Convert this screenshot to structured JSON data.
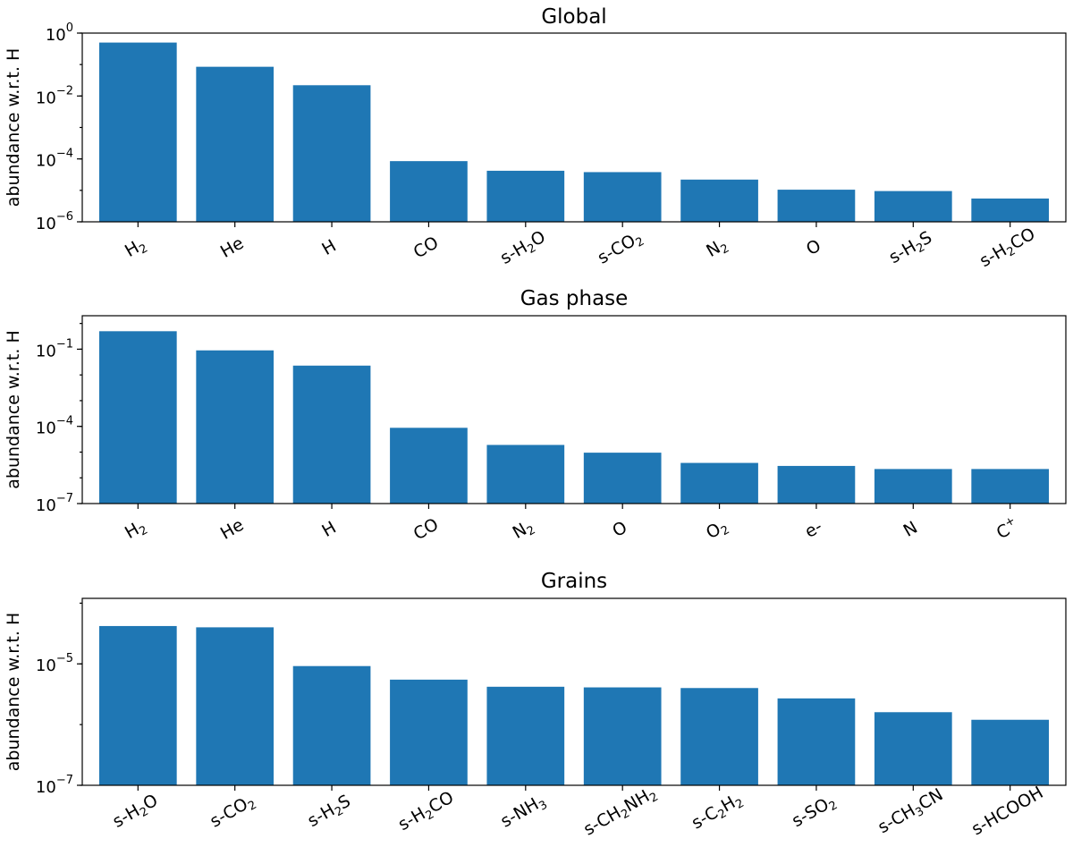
{
  "chart_data": [
    {
      "type": "bar",
      "title": "Global",
      "ylabel": "abundance w.r.t. H",
      "yscale": "log",
      "ylim": [
        1e-06,
        1
      ],
      "yticks": [
        {
          "value": 1,
          "base": "10",
          "exp": "0"
        },
        {
          "value": 0.01,
          "base": "10",
          "exp": "−2"
        },
        {
          "value": 0.0001,
          "base": "10",
          "exp": "−4"
        },
        {
          "value": 1e-06,
          "base": "10",
          "exp": "−6"
        }
      ],
      "categories": [
        [
          {
            "t": "H"
          },
          {
            "t": "2",
            "sub": true
          }
        ],
        [
          {
            "t": "He"
          }
        ],
        [
          {
            "t": "H"
          }
        ],
        [
          {
            "t": "CO"
          }
        ],
        [
          {
            "t": "s-H"
          },
          {
            "t": "2",
            "sub": true
          },
          {
            "t": "O"
          }
        ],
        [
          {
            "t": "s-CO"
          },
          {
            "t": "2",
            "sub": true
          }
        ],
        [
          {
            "t": "N"
          },
          {
            "t": "2",
            "sub": true
          }
        ],
        [
          {
            "t": "O"
          }
        ],
        [
          {
            "t": "s-H"
          },
          {
            "t": "2",
            "sub": true
          },
          {
            "t": "S"
          }
        ],
        [
          {
            "t": "s-H"
          },
          {
            "t": "2",
            "sub": true
          },
          {
            "t": "CO"
          }
        ]
      ],
      "values": [
        0.5,
        0.085,
        0.022,
        8.5e-05,
        4.2e-05,
        3.8e-05,
        2.2e-05,
        1.05e-05,
        9.5e-06,
        5.5e-06
      ]
    },
    {
      "type": "bar",
      "title": "Gas phase",
      "ylabel": "abundance w.r.t. H",
      "yscale": "log",
      "ylim": [
        1e-07,
        2
      ],
      "yticks": [
        {
          "value": 0.1,
          "base": "10",
          "exp": "−1"
        },
        {
          "value": 0.0001,
          "base": "10",
          "exp": "−4"
        },
        {
          "value": 1e-07,
          "base": "10",
          "exp": "−7"
        }
      ],
      "categories": [
        [
          {
            "t": "H"
          },
          {
            "t": "2",
            "sub": true
          }
        ],
        [
          {
            "t": "He"
          }
        ],
        [
          {
            "t": "H"
          }
        ],
        [
          {
            "t": "CO"
          }
        ],
        [
          {
            "t": "N"
          },
          {
            "t": "2",
            "sub": true
          }
        ],
        [
          {
            "t": "O"
          }
        ],
        [
          {
            "t": "O"
          },
          {
            "t": "2",
            "sub": true
          }
        ],
        [
          {
            "t": "e-"
          }
        ],
        [
          {
            "t": "N"
          }
        ],
        [
          {
            "t": "C"
          },
          {
            "t": "+",
            "sup": true
          }
        ]
      ],
      "values": [
        0.5,
        0.09,
        0.023,
        8.8e-05,
        1.9e-05,
        9.5e-06,
        3.8e-06,
        2.9e-06,
        2.2e-06,
        2.2e-06
      ]
    },
    {
      "type": "bar",
      "title": "Grains",
      "ylabel": "abundance w.r.t. H",
      "yscale": "log",
      "ylim": [
        1e-07,
        0.00012
      ],
      "yticks": [
        {
          "value": 1e-05,
          "base": "10",
          "exp": "−5"
        },
        {
          "value": 1e-07,
          "base": "10",
          "exp": "−7"
        }
      ],
      "categories": [
        [
          {
            "t": "s-H"
          },
          {
            "t": "2",
            "sub": true
          },
          {
            "t": "O"
          }
        ],
        [
          {
            "t": "s-CO"
          },
          {
            "t": "2",
            "sub": true
          }
        ],
        [
          {
            "t": "s-H"
          },
          {
            "t": "2",
            "sub": true
          },
          {
            "t": "S"
          }
        ],
        [
          {
            "t": "s-H"
          },
          {
            "t": "2",
            "sub": true
          },
          {
            "t": "CO"
          }
        ],
        [
          {
            "t": "s-NH"
          },
          {
            "t": "3",
            "sub": true
          }
        ],
        [
          {
            "t": "s-CH"
          },
          {
            "t": "2",
            "sub": true
          },
          {
            "t": "NH"
          },
          {
            "t": "2",
            "sub": true
          }
        ],
        [
          {
            "t": "s-C"
          },
          {
            "t": "2",
            "sub": true
          },
          {
            "t": "H"
          },
          {
            "t": "2",
            "sub": true
          }
        ],
        [
          {
            "t": "s-SO"
          },
          {
            "t": "2",
            "sub": true
          }
        ],
        [
          {
            "t": "s-CH"
          },
          {
            "t": "3",
            "sub": true
          },
          {
            "t": "CN"
          }
        ],
        [
          {
            "t": "s-HCOOH"
          }
        ]
      ],
      "values": [
        4.2e-05,
        4e-05,
        9.2e-06,
        5.5e-06,
        4.2e-06,
        4.1e-06,
        4e-06,
        2.7e-06,
        1.6e-06,
        1.2e-06
      ]
    }
  ]
}
